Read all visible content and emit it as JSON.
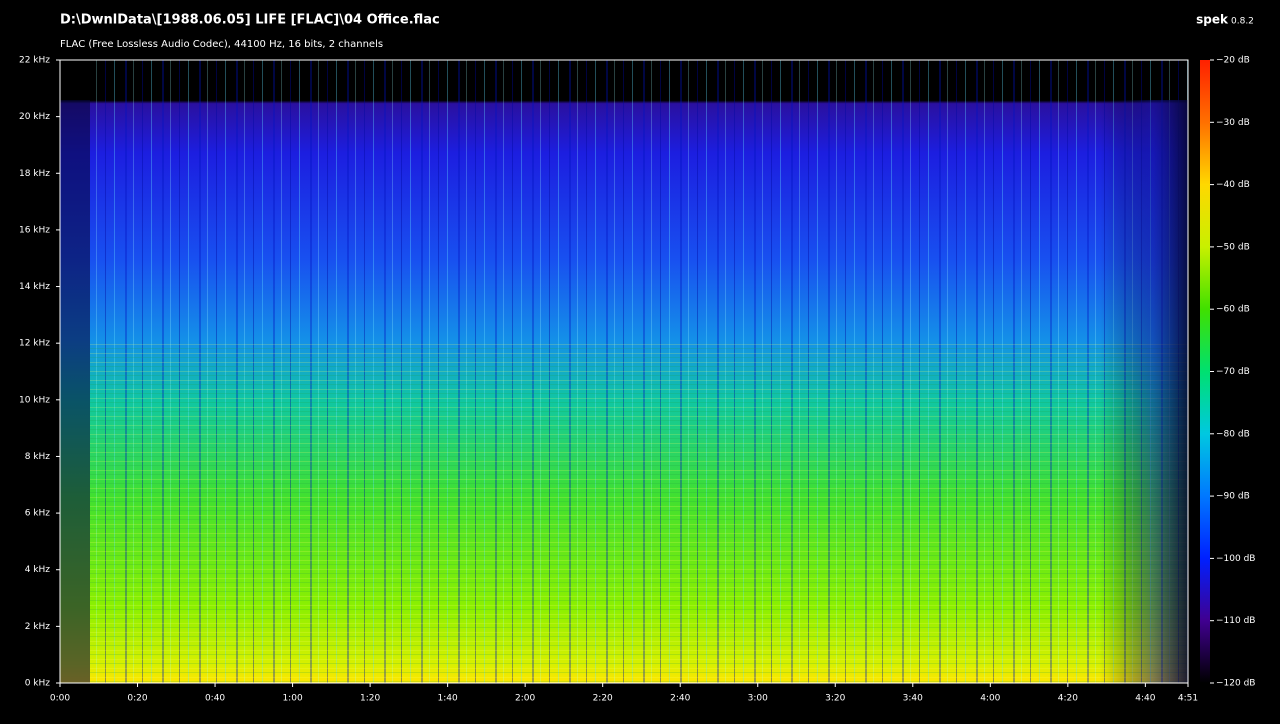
{
  "chart_data": {
    "type": "spectrogram",
    "title": "D:\\DwnlData\\[1988.06.05] LIFE [FLAC]\\04 Office.flac",
    "subtitle": "FLAC (Free Lossless Audio Codec), 44100 Hz, 16 bits, 2 channels",
    "app_name": "spek",
    "app_version": "0.8.2",
    "xlim": [
      0,
      291
    ],
    "xticks": [
      {
        "value": 0,
        "label": "0:00"
      },
      {
        "value": 20,
        "label": "0:20"
      },
      {
        "value": 40,
        "label": "0:40"
      },
      {
        "value": 60,
        "label": "1:00"
      },
      {
        "value": 80,
        "label": "1:20"
      },
      {
        "value": 100,
        "label": "1:40"
      },
      {
        "value": 120,
        "label": "2:00"
      },
      {
        "value": 140,
        "label": "2:20"
      },
      {
        "value": 160,
        "label": "2:40"
      },
      {
        "value": 180,
        "label": "3:00"
      },
      {
        "value": 200,
        "label": "3:20"
      },
      {
        "value": 220,
        "label": "3:40"
      },
      {
        "value": 240,
        "label": "4:00"
      },
      {
        "value": 260,
        "label": "4:20"
      },
      {
        "value": 280,
        "label": "4:40"
      },
      {
        "value": 291,
        "label": "4:51"
      }
    ],
    "ylim": [
      0,
      22
    ],
    "yticks": [
      {
        "value": 0,
        "label": "0 kHz"
      },
      {
        "value": 2,
        "label": "2 kHz"
      },
      {
        "value": 4,
        "label": "4 kHz"
      },
      {
        "value": 6,
        "label": "6 kHz"
      },
      {
        "value": 8,
        "label": "8 kHz"
      },
      {
        "value": 10,
        "label": "10 kHz"
      },
      {
        "value": 12,
        "label": "12 kHz"
      },
      {
        "value": 14,
        "label": "14 kHz"
      },
      {
        "value": 16,
        "label": "16 kHz"
      },
      {
        "value": 18,
        "label": "18 kHz"
      },
      {
        "value": 20,
        "label": "20 kHz"
      },
      {
        "value": 22,
        "label": "22 kHz"
      }
    ],
    "zlim": [
      -120,
      -20
    ],
    "zticks": [
      {
        "value": -20,
        "label": "−20 dB"
      },
      {
        "value": -30,
        "label": "−30 dB"
      },
      {
        "value": -40,
        "label": "−40 dB"
      },
      {
        "value": -50,
        "label": "−50 dB"
      },
      {
        "value": -60,
        "label": "−60 dB"
      },
      {
        "value": -70,
        "label": "−70 dB"
      },
      {
        "value": -80,
        "label": "−80 dB"
      },
      {
        "value": -90,
        "label": "−90 dB"
      },
      {
        "value": -100,
        "label": "−100 dB"
      },
      {
        "value": -110,
        "label": "−110 dB"
      },
      {
        "value": -120,
        "label": "−120 dB"
      }
    ]
  }
}
